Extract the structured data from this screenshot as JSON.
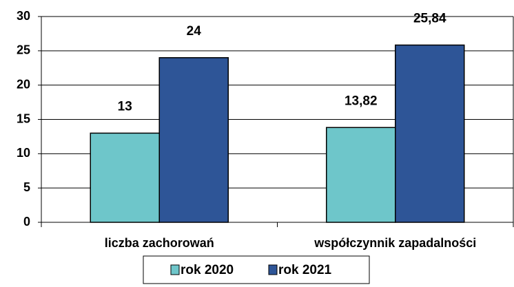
{
  "chart_data": {
    "type": "bar",
    "categories": [
      "liczba zachorowań",
      "współczynnik zapadalności"
    ],
    "series": [
      {
        "name": "rok 2020",
        "color": "#6ec6ca",
        "values": [
          13,
          13.82
        ],
        "value_labels": [
          "13",
          "13,82"
        ]
      },
      {
        "name": "rok 2021",
        "color": "#2e5597",
        "values": [
          24,
          25.84
        ],
        "value_labels": [
          "24",
          "25,84"
        ]
      }
    ],
    "ylim": [
      0,
      30
    ],
    "yticks": [
      0,
      5,
      10,
      15,
      20,
      25,
      30
    ],
    "grid": true,
    "legend": "bottom"
  }
}
